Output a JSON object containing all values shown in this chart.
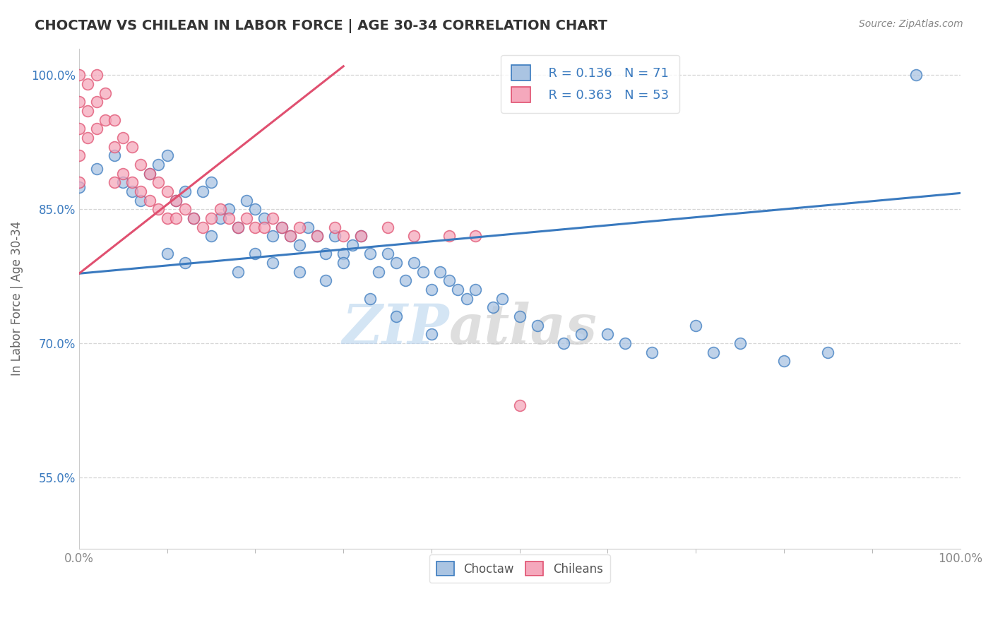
{
  "title": "CHOCTAW VS CHILEAN IN LABOR FORCE | AGE 30-34 CORRELATION CHART",
  "source": "Source: ZipAtlas.com",
  "ylabel": "In Labor Force | Age 30-34",
  "xlim": [
    0.0,
    1.0
  ],
  "ylim": [
    0.47,
    1.03
  ],
  "yticks": [
    0.55,
    0.7,
    0.85,
    1.0
  ],
  "ytick_labels": [
    "55.0%",
    "70.0%",
    "85.0%",
    "100.0%"
  ],
  "xtick_labels": [
    "0.0%",
    "100.0%"
  ],
  "xticks": [
    0.0,
    1.0
  ],
  "legend_blue_r": "R = 0.136",
  "legend_blue_n": "N = 71",
  "legend_pink_r": "R = 0.363",
  "legend_pink_n": "N = 53",
  "choctaw_color": "#aac4e2",
  "chilean_color": "#f5a8bc",
  "blue_line_color": "#3a7abf",
  "pink_line_color": "#e05070",
  "legend_text_color": "#3a7abf",
  "watermark": "ZIPatlas",
  "background_color": "#ffffff",
  "grid_color": "#cccccc",
  "blue_line_x0": 0.0,
  "blue_line_y0": 0.778,
  "blue_line_x1": 1.0,
  "blue_line_y1": 0.868,
  "pink_line_x0": 0.0,
  "pink_line_y0": 0.778,
  "pink_line_x1": 0.3,
  "pink_line_y1": 1.01,
  "choctaw_x": [
    0.0,
    0.02,
    0.04,
    0.05,
    0.06,
    0.07,
    0.08,
    0.09,
    0.1,
    0.11,
    0.12,
    0.13,
    0.14,
    0.15,
    0.16,
    0.17,
    0.18,
    0.19,
    0.2,
    0.21,
    0.22,
    0.23,
    0.24,
    0.25,
    0.26,
    0.27,
    0.28,
    0.29,
    0.3,
    0.31,
    0.32,
    0.33,
    0.34,
    0.35,
    0.36,
    0.37,
    0.38,
    0.39,
    0.4,
    0.41,
    0.42,
    0.43,
    0.44,
    0.45,
    0.47,
    0.48,
    0.5,
    0.52,
    0.55,
    0.57,
    0.6,
    0.62,
    0.65,
    0.7,
    0.72,
    0.75,
    0.8,
    0.85,
    0.1,
    0.12,
    0.15,
    0.18,
    0.2,
    0.22,
    0.25,
    0.28,
    0.3,
    0.33,
    0.36,
    0.4,
    0.95
  ],
  "choctaw_y": [
    0.875,
    0.895,
    0.91,
    0.88,
    0.87,
    0.86,
    0.89,
    0.9,
    0.91,
    0.86,
    0.87,
    0.84,
    0.87,
    0.88,
    0.84,
    0.85,
    0.83,
    0.86,
    0.85,
    0.84,
    0.82,
    0.83,
    0.82,
    0.81,
    0.83,
    0.82,
    0.8,
    0.82,
    0.8,
    0.81,
    0.82,
    0.8,
    0.78,
    0.8,
    0.79,
    0.77,
    0.79,
    0.78,
    0.76,
    0.78,
    0.77,
    0.76,
    0.75,
    0.76,
    0.74,
    0.75,
    0.73,
    0.72,
    0.7,
    0.71,
    0.71,
    0.7,
    0.69,
    0.72,
    0.69,
    0.7,
    0.68,
    0.69,
    0.8,
    0.79,
    0.82,
    0.78,
    0.8,
    0.79,
    0.78,
    0.77,
    0.79,
    0.75,
    0.73,
    0.71,
    1.0
  ],
  "chilean_x": [
    0.0,
    0.0,
    0.0,
    0.0,
    0.0,
    0.01,
    0.01,
    0.01,
    0.02,
    0.02,
    0.02,
    0.03,
    0.03,
    0.04,
    0.04,
    0.04,
    0.05,
    0.05,
    0.06,
    0.06,
    0.07,
    0.07,
    0.08,
    0.08,
    0.09,
    0.09,
    0.1,
    0.1,
    0.11,
    0.11,
    0.12,
    0.13,
    0.14,
    0.15,
    0.16,
    0.17,
    0.18,
    0.19,
    0.2,
    0.21,
    0.22,
    0.23,
    0.24,
    0.25,
    0.27,
    0.29,
    0.3,
    0.32,
    0.35,
    0.38,
    0.42,
    0.45,
    0.5
  ],
  "chilean_y": [
    1.0,
    0.97,
    0.94,
    0.91,
    0.88,
    0.99,
    0.96,
    0.93,
    1.0,
    0.97,
    0.94,
    0.98,
    0.95,
    0.95,
    0.92,
    0.88,
    0.93,
    0.89,
    0.92,
    0.88,
    0.9,
    0.87,
    0.89,
    0.86,
    0.88,
    0.85,
    0.87,
    0.84,
    0.86,
    0.84,
    0.85,
    0.84,
    0.83,
    0.84,
    0.85,
    0.84,
    0.83,
    0.84,
    0.83,
    0.83,
    0.84,
    0.83,
    0.82,
    0.83,
    0.82,
    0.83,
    0.82,
    0.82,
    0.83,
    0.82,
    0.82,
    0.82,
    0.63
  ]
}
